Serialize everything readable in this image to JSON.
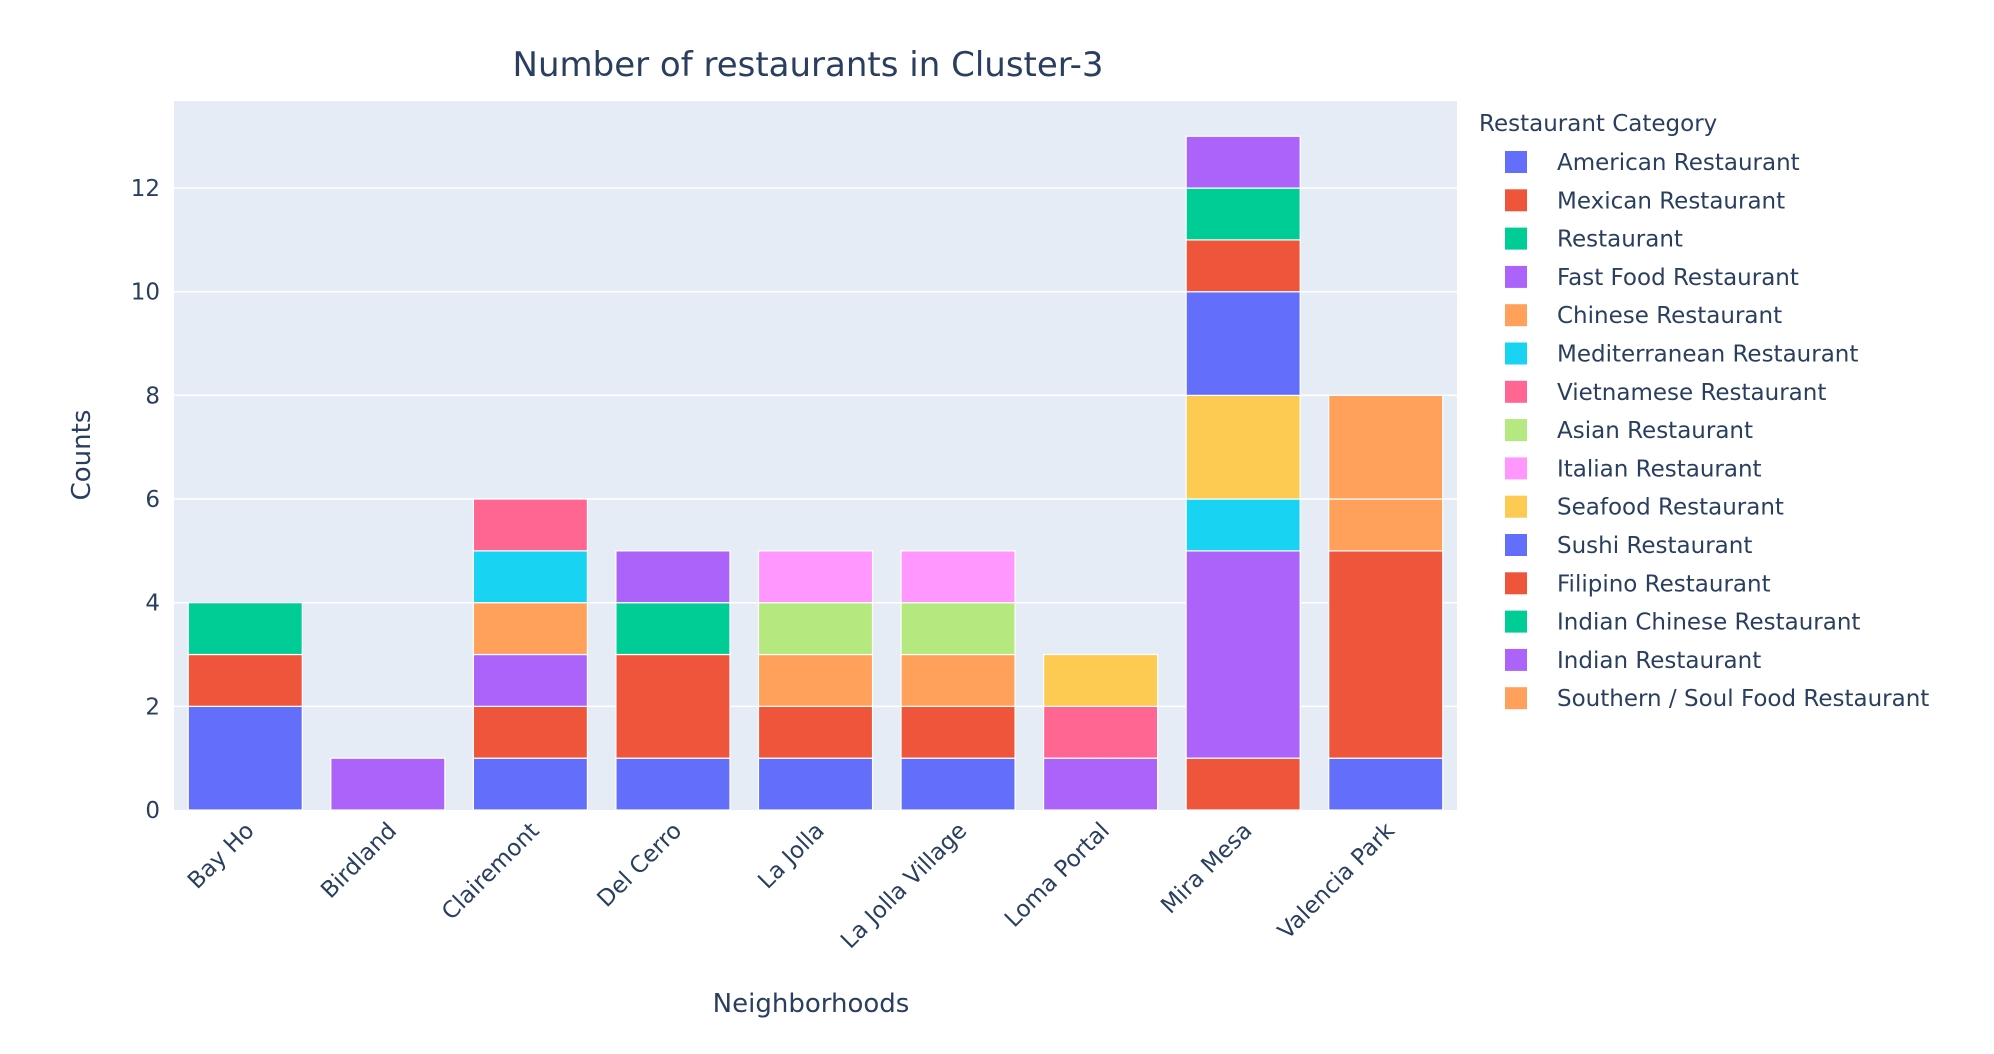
{
  "chart_data": {
    "type": "bar",
    "barmode": "stack",
    "title": "Number of restaurants in Cluster-3",
    "xlabel": "Neighborhoods",
    "ylabel": "Counts",
    "ylim": [
      0,
      13.68
    ],
    "yticks": [
      0,
      2,
      4,
      6,
      8,
      10,
      12
    ],
    "grid": true,
    "legend_title": "Restaurant Category",
    "legend_position": "right",
    "categories": [
      "Bay Ho",
      "Birdland",
      "Clairemont",
      "Del Cerro",
      "La Jolla",
      "La Jolla Village",
      "Loma Portal",
      "Mira Mesa",
      "Valencia Park"
    ],
    "series": [
      {
        "name": "American Restaurant",
        "color": "#636efa",
        "values": [
          2,
          0,
          1,
          1,
          1,
          1,
          0,
          0,
          1
        ]
      },
      {
        "name": "Mexican Restaurant",
        "color": "#EF553B",
        "values": [
          1,
          0,
          1,
          2,
          1,
          1,
          0,
          1,
          4
        ]
      },
      {
        "name": "Restaurant",
        "color": "#00cc96",
        "values": [
          1,
          0,
          0,
          1,
          0,
          0,
          0,
          0,
          0
        ]
      },
      {
        "name": "Fast Food Restaurant",
        "color": "#ab63fa",
        "values": [
          0,
          1,
          1,
          1,
          0,
          0,
          1,
          4,
          0
        ]
      },
      {
        "name": "Chinese Restaurant",
        "color": "#FFA15A",
        "values": [
          0,
          0,
          1,
          0,
          1,
          1,
          0,
          0,
          1
        ]
      },
      {
        "name": "Mediterranean Restaurant",
        "color": "#19d3f3",
        "values": [
          0,
          0,
          1,
          0,
          0,
          0,
          0,
          1,
          0
        ]
      },
      {
        "name": "Vietnamese Restaurant",
        "color": "#FF6692",
        "values": [
          0,
          0,
          1,
          0,
          0,
          0,
          1,
          0,
          0
        ]
      },
      {
        "name": "Asian Restaurant",
        "color": "#B6E880",
        "values": [
          0,
          0,
          0,
          0,
          1,
          1,
          0,
          0,
          0
        ]
      },
      {
        "name": "Italian Restaurant",
        "color": "#FF97FF",
        "values": [
          0,
          0,
          0,
          0,
          1,
          1,
          0,
          0,
          0
        ]
      },
      {
        "name": "Seafood Restaurant",
        "color": "#FECB52",
        "values": [
          0,
          0,
          0,
          0,
          0,
          0,
          1,
          2,
          0
        ]
      },
      {
        "name": "Sushi Restaurant",
        "color": "#636efa",
        "values": [
          0,
          0,
          0,
          0,
          0,
          0,
          0,
          2,
          0
        ]
      },
      {
        "name": "Filipino Restaurant",
        "color": "#EF553B",
        "values": [
          0,
          0,
          0,
          0,
          0,
          0,
          0,
          1,
          0
        ]
      },
      {
        "name": "Indian Chinese Restaurant",
        "color": "#00cc96",
        "values": [
          0,
          0,
          0,
          0,
          0,
          0,
          0,
          1,
          0
        ]
      },
      {
        "name": "Indian Restaurant",
        "color": "#ab63fa",
        "values": [
          0,
          0,
          0,
          0,
          0,
          0,
          0,
          1,
          0
        ]
      },
      {
        "name": "Southern / Soul Food Restaurant",
        "color": "#FFA15A",
        "values": [
          0,
          0,
          0,
          0,
          0,
          0,
          0,
          0,
          2
        ]
      }
    ]
  }
}
